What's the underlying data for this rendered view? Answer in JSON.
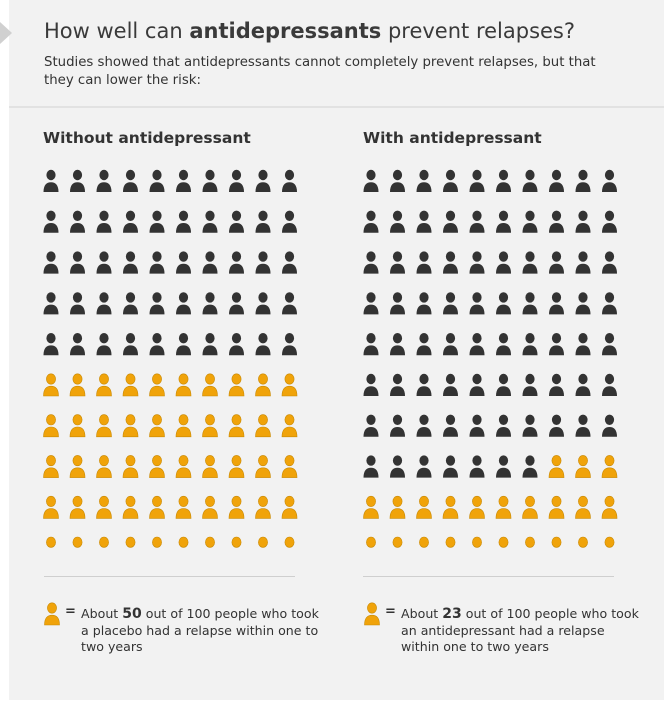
{
  "title": {
    "prefix": "How well can ",
    "bold": "antidepressants",
    "suffix": " prevent relapses?"
  },
  "subtitle": "Studies showed that antidepressants cannot completely prevent relapses, but that they can lower the risk:",
  "colors": {
    "dark": "#333333",
    "orange": "#f0a30a",
    "background": "#f2f2f2"
  },
  "icon_name": "person-icon",
  "panels": [
    {
      "heading": "Without antidepressant",
      "total": 100,
      "relapses": 50,
      "legend": {
        "prefix": "About ",
        "number": "50",
        "suffix": " out of 100 people who took a placebo had a relapse within one to two years"
      }
    },
    {
      "heading": "With antidepressant",
      "total": 100,
      "relapses": 23,
      "legend": {
        "prefix": "About ",
        "number": "23",
        "suffix": " out of 100 people who took an antidepressant had a relapse within one to two years"
      }
    }
  ],
  "legend_equals": "="
}
